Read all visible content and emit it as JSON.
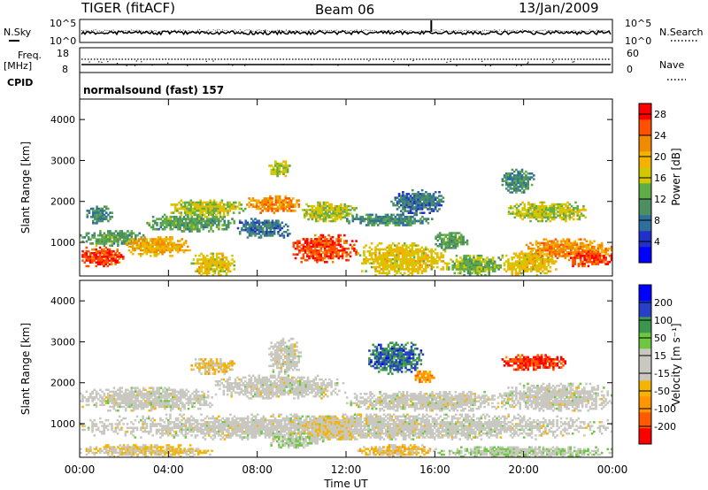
{
  "header": {
    "radar": "TIGER (fitACF)",
    "beam": "Beam 06",
    "date": "13/Jan/2009"
  },
  "top_panels": {
    "nsky": {
      "label": "N.Sky",
      "ticks": [
        "10^5",
        "10^0"
      ]
    },
    "nsearch": {
      "label": "N.Search",
      "ticks": [
        "10^5",
        "10^0"
      ]
    },
    "freq": {
      "label": "Freq.",
      "unit": "[MHz]",
      "ticks": [
        "18",
        "8"
      ]
    },
    "nave": {
      "label": "Nave",
      "ticks": [
        "60",
        "0"
      ]
    },
    "cpid": {
      "label": "CPID",
      "value": "normalsound (fast) 157"
    }
  },
  "chart_data": [
    {
      "type": "heatmap",
      "name": "power",
      "xlabel": "Time UT",
      "ylabel": "Slant Range [km]",
      "x_ticks": [
        "00:00",
        "04:00",
        "08:00",
        "12:00",
        "16:00",
        "20:00",
        "00:00"
      ],
      "xlim": [
        0,
        24
      ],
      "ylim": [
        180,
        4500
      ],
      "y_ticks": [
        1000,
        2000,
        3000,
        4000
      ],
      "colorbar": {
        "label": "Power [dB]",
        "ticks": [
          "4",
          "8",
          "12",
          "16",
          "20",
          "24",
          "28"
        ],
        "range": [
          0,
          30
        ]
      },
      "regions": [
        {
          "t0": 0.0,
          "t1": 2.0,
          "r0": 400,
          "r1": 900,
          "value": 26
        },
        {
          "t0": 0.0,
          "t1": 3.0,
          "r0": 900,
          "r1": 1300,
          "value": 12
        },
        {
          "t0": 0.3,
          "t1": 1.5,
          "r0": 1450,
          "r1": 1900,
          "value": 10
        },
        {
          "t0": 2.0,
          "t1": 5.0,
          "r0": 650,
          "r1": 1150,
          "value": 20
        },
        {
          "t0": 3.0,
          "t1": 7.0,
          "r0": 1250,
          "r1": 1700,
          "value": 12
        },
        {
          "t0": 4.0,
          "t1": 7.5,
          "r0": 1650,
          "r1": 2050,
          "value": 16
        },
        {
          "t0": 5.0,
          "t1": 7.0,
          "r0": 180,
          "r1": 750,
          "value": 18
        },
        {
          "t0": 7.0,
          "t1": 9.5,
          "r0": 1100,
          "r1": 1600,
          "value": 8
        },
        {
          "t0": 7.5,
          "t1": 10.0,
          "r0": 1700,
          "r1": 2150,
          "value": 22
        },
        {
          "t0": 8.5,
          "t1": 9.5,
          "r0": 2600,
          "r1": 3000,
          "value": 16
        },
        {
          "t0": 9.5,
          "t1": 12.5,
          "r0": 500,
          "r1": 1200,
          "value": 26
        },
        {
          "t0": 10.0,
          "t1": 12.5,
          "r0": 1500,
          "r1": 2000,
          "value": 16
        },
        {
          "t0": 12.5,
          "t1": 16.5,
          "r0": 180,
          "r1": 1000,
          "value": 18
        },
        {
          "t0": 12.0,
          "t1": 16.0,
          "r0": 1400,
          "r1": 1700,
          "value": 10
        },
        {
          "t0": 14.0,
          "t1": 16.5,
          "r0": 1700,
          "r1": 2300,
          "value": 8
        },
        {
          "t0": 16.5,
          "t1": 19.0,
          "r0": 180,
          "r1": 700,
          "value": 14
        },
        {
          "t0": 16.0,
          "t1": 17.5,
          "r0": 800,
          "r1": 1300,
          "value": 12
        },
        {
          "t0": 19.0,
          "t1": 21.5,
          "r0": 180,
          "r1": 800,
          "value": 18
        },
        {
          "t0": 20.0,
          "t1": 24.0,
          "r0": 600,
          "r1": 1100,
          "value": 22
        },
        {
          "t0": 22.0,
          "t1": 24.0,
          "r0": 400,
          "r1": 800,
          "value": 26
        },
        {
          "t0": 19.2,
          "t1": 23.0,
          "r0": 1500,
          "r1": 2000,
          "value": 16
        },
        {
          "t0": 19.0,
          "t1": 20.5,
          "r0": 2200,
          "r1": 2800,
          "value": 10
        }
      ]
    },
    {
      "type": "heatmap",
      "name": "velocity",
      "xlabel": "Time UT",
      "ylabel": "Slant Range [km]",
      "x_ticks": [
        "00:00",
        "04:00",
        "08:00",
        "12:00",
        "16:00",
        "20:00",
        "00:00"
      ],
      "xlim": [
        0,
        24
      ],
      "ylim": [
        180,
        4500
      ],
      "y_ticks": [
        1000,
        2000,
        3000,
        4000
      ],
      "colorbar": {
        "label": "Velocity [m s⁻¹]",
        "ticks": [
          "200",
          "100",
          "50",
          "15",
          "-15",
          "-50",
          "-100",
          "-200"
        ],
        "range": [
          -250,
          250
        ]
      },
      "regions": [
        {
          "t0": 0.0,
          "t1": 24.0,
          "r0": 600,
          "r1": 1250,
          "value": 0
        },
        {
          "t0": 0.0,
          "t1": 6.0,
          "r0": 1300,
          "r1": 1900,
          "value": 0
        },
        {
          "t0": 6.0,
          "t1": 12.0,
          "r0": 1600,
          "r1": 2200,
          "value": 0
        },
        {
          "t0": 12.0,
          "t1": 19.5,
          "r0": 1300,
          "r1": 1800,
          "value": 0
        },
        {
          "t0": 19.0,
          "t1": 24.0,
          "r0": 1300,
          "r1": 2000,
          "value": 0
        },
        {
          "t0": 0.0,
          "t1": 6.0,
          "r0": 180,
          "r1": 500,
          "value": -40
        },
        {
          "t0": 8.5,
          "t1": 11.0,
          "r0": 400,
          "r1": 750,
          "value": 40
        },
        {
          "t0": 10.0,
          "t1": 12.5,
          "r0": 600,
          "r1": 1200,
          "value": -45
        },
        {
          "t0": 12.5,
          "t1": 16.0,
          "r0": 180,
          "r1": 500,
          "value": -60
        },
        {
          "t0": 16.0,
          "t1": 24.0,
          "r0": 180,
          "r1": 450,
          "value": 30
        },
        {
          "t0": 8.5,
          "t1": 10.0,
          "r0": 2200,
          "r1": 3100,
          "value": 0
        },
        {
          "t0": 13.0,
          "t1": 15.5,
          "r0": 2200,
          "r1": 3000,
          "value": 150
        },
        {
          "t0": 19.0,
          "t1": 22.0,
          "r0": 2300,
          "r1": 2700,
          "value": -200
        },
        {
          "t0": 5.0,
          "t1": 7.0,
          "r0": 2200,
          "r1": 2600,
          "value": -60
        },
        {
          "t0": 15.0,
          "t1": 16.0,
          "r0": 2000,
          "r1": 2300,
          "value": -120
        }
      ]
    }
  ]
}
